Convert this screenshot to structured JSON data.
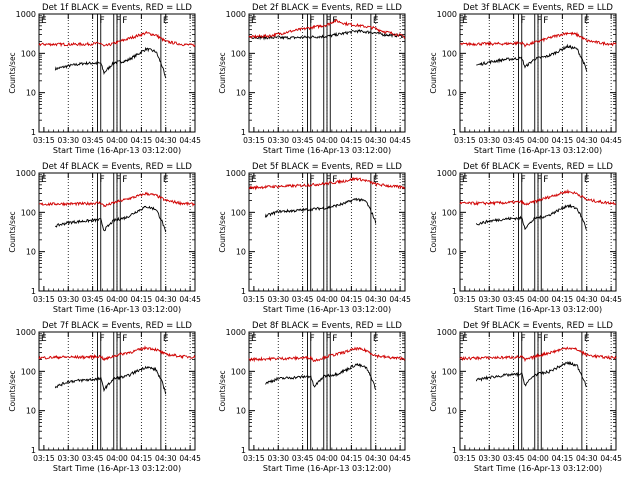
{
  "figure": {
    "ytick_labels": [
      "1",
      "10",
      "100",
      "1000"
    ],
    "xtick_labels": [
      "03:15",
      "03:30",
      "03:45",
      "04:00",
      "04:15",
      "04:30",
      "04:45"
    ],
    "ylabel": "Counts/sec",
    "xlabel": "Start Time (16-Apr-13 03:12:00)",
    "marker_label_e": "E",
    "marker_label_f": "F"
  },
  "chart_data": [
    {
      "type": "line",
      "title": "Det 1f BLACK = Events, RED = LLD",
      "yscale": "log",
      "ylim": [
        1,
        1000
      ],
      "xlim": [
        "03:12",
        "04:48"
      ],
      "series": [
        {
          "color": "#000000",
          "x": [
            "03:22",
            "03:30",
            "03:40",
            "03:50",
            "03:52",
            "03:58",
            "04:06",
            "04:12",
            "04:18",
            "04:24",
            "04:28",
            "04:30"
          ],
          "y": [
            40,
            48,
            56,
            56,
            32,
            58,
            65,
            90,
            130,
            110,
            45,
            22
          ]
        },
        {
          "color": "#d00000",
          "x": [
            "03:12",
            "03:25",
            "03:40",
            "03:50",
            "03:52",
            "04:00",
            "04:10",
            "04:18",
            "04:24",
            "04:30",
            "04:40",
            "04:48"
          ],
          "y": [
            170,
            170,
            170,
            180,
            150,
            190,
            260,
            330,
            290,
            200,
            170,
            160
          ]
        }
      ]
    },
    {
      "type": "line",
      "title": "Det 2f BLACK = Events, RED = LLD",
      "yscale": "log",
      "ylim": [
        1,
        1000
      ],
      "xlim": [
        "03:12",
        "04:48"
      ],
      "series": [
        {
          "color": "#000000",
          "x": [
            "03:12",
            "03:25",
            "03:40",
            "03:50",
            "04:00",
            "04:10",
            "04:18",
            "04:28",
            "04:35",
            "04:45",
            "04:48"
          ],
          "y": [
            260,
            250,
            250,
            260,
            270,
            320,
            370,
            340,
            300,
            280,
            260
          ]
        },
        {
          "color": "#d00000",
          "x": [
            "03:12",
            "03:25",
            "03:40",
            "03:50",
            "04:00",
            "04:05",
            "04:12",
            "04:18",
            "04:28",
            "04:35",
            "04:45",
            "04:48"
          ],
          "y": [
            260,
            280,
            380,
            450,
            530,
            680,
            560,
            520,
            450,
            360,
            290,
            260
          ]
        }
      ]
    },
    {
      "type": "line",
      "title": "Det 3f BLACK = Events, RED = LLD",
      "yscale": "log",
      "ylim": [
        1,
        1000
      ],
      "xlim": [
        "03:12",
        "04:48"
      ],
      "series": [
        {
          "color": "#000000",
          "x": [
            "03:22",
            "03:30",
            "03:40",
            "03:50",
            "03:52",
            "03:58",
            "04:06",
            "04:12",
            "04:18",
            "04:24",
            "04:28",
            "04:30"
          ],
          "y": [
            50,
            60,
            70,
            75,
            45,
            72,
            85,
            110,
            150,
            130,
            60,
            35
          ]
        },
        {
          "color": "#d00000",
          "x": [
            "03:12",
            "03:25",
            "03:40",
            "03:50",
            "03:52",
            "04:00",
            "04:10",
            "04:18",
            "04:24",
            "04:30",
            "04:40",
            "04:48"
          ],
          "y": [
            170,
            175,
            175,
            185,
            160,
            200,
            270,
            330,
            300,
            210,
            180,
            170
          ]
        }
      ]
    },
    {
      "type": "line",
      "title": "Det 4f BLACK = Events, RED = LLD",
      "yscale": "log",
      "ylim": [
        1,
        1000
      ],
      "xlim": [
        "03:12",
        "04:48"
      ],
      "series": [
        {
          "color": "#000000",
          "x": [
            "03:22",
            "03:30",
            "03:40",
            "03:50",
            "03:52",
            "03:58",
            "04:06",
            "04:12",
            "04:18",
            "04:24",
            "04:28",
            "04:30"
          ],
          "y": [
            45,
            55,
            60,
            65,
            35,
            62,
            75,
            105,
            140,
            120,
            55,
            30
          ]
        },
        {
          "color": "#d00000",
          "x": [
            "03:12",
            "03:25",
            "03:40",
            "03:50",
            "03:52",
            "04:00",
            "04:10",
            "04:18",
            "04:24",
            "04:30",
            "04:40",
            "04:48"
          ],
          "y": [
            160,
            165,
            165,
            175,
            145,
            185,
            240,
            300,
            270,
            200,
            170,
            160
          ]
        }
      ]
    },
    {
      "type": "line",
      "title": "Det 5f BLACK = Events, RED = LLD",
      "yscale": "log",
      "ylim": [
        1,
        1000
      ],
      "xlim": [
        "03:12",
        "04:48"
      ],
      "series": [
        {
          "color": "#000000",
          "x": [
            "03:22",
            "03:30",
            "03:40",
            "03:50",
            "04:00",
            "04:10",
            "04:18",
            "04:24",
            "04:28",
            "04:30"
          ],
          "y": [
            80,
            105,
            110,
            120,
            130,
            165,
            220,
            190,
            90,
            55
          ]
        },
        {
          "color": "#d00000",
          "x": [
            "03:12",
            "03:25",
            "03:40",
            "03:50",
            "04:00",
            "04:10",
            "04:18",
            "04:24",
            "04:30",
            "04:40",
            "04:48"
          ],
          "y": [
            420,
            450,
            470,
            500,
            540,
            620,
            720,
            640,
            520,
            460,
            430
          ]
        }
      ]
    },
    {
      "type": "line",
      "title": "Det 6f BLACK = Events, RED = LLD",
      "yscale": "log",
      "ylim": [
        1,
        1000
      ],
      "xlim": [
        "03:12",
        "04:48"
      ],
      "series": [
        {
          "color": "#000000",
          "x": [
            "03:22",
            "03:30",
            "03:40",
            "03:50",
            "03:52",
            "03:58",
            "04:06",
            "04:12",
            "04:18",
            "04:24",
            "04:28",
            "04:30"
          ],
          "y": [
            50,
            60,
            68,
            72,
            40,
            70,
            82,
            110,
            150,
            125,
            60,
            35
          ]
        },
        {
          "color": "#d00000",
          "x": [
            "03:12",
            "03:25",
            "03:40",
            "03:50",
            "03:52",
            "04:00",
            "04:10",
            "04:18",
            "04:24",
            "04:30",
            "04:40",
            "04:48"
          ],
          "y": [
            170,
            170,
            175,
            185,
            155,
            200,
            270,
            340,
            300,
            210,
            180,
            170
          ]
        }
      ]
    },
    {
      "type": "line",
      "title": "Det 7f BLACK = Events, RED = LLD",
      "yscale": "log",
      "ylim": [
        1,
        1000
      ],
      "xlim": [
        "03:12",
        "04:48"
      ],
      "series": [
        {
          "color": "#000000",
          "x": [
            "03:22",
            "03:30",
            "03:40",
            "03:50",
            "03:52",
            "03:58",
            "04:06",
            "04:12",
            "04:18",
            "04:24",
            "04:28",
            "04:30"
          ],
          "y": [
            40,
            55,
            60,
            65,
            35,
            65,
            75,
            100,
            130,
            110,
            50,
            28
          ]
        },
        {
          "color": "#d00000",
          "x": [
            "03:12",
            "03:25",
            "03:40",
            "03:50",
            "03:52",
            "04:00",
            "04:10",
            "04:18",
            "04:24",
            "04:30",
            "04:40",
            "04:48"
          ],
          "y": [
            220,
            230,
            230,
            240,
            200,
            260,
            320,
            400,
            360,
            270,
            240,
            230
          ]
        }
      ]
    },
    {
      "type": "line",
      "title": "Det 8f BLACK = Events, RED = LLD",
      "yscale": "log",
      "ylim": [
        1,
        1000
      ],
      "xlim": [
        "03:12",
        "04:48"
      ],
      "series": [
        {
          "color": "#000000",
          "x": [
            "03:22",
            "03:30",
            "03:40",
            "03:50",
            "03:52",
            "03:58",
            "04:06",
            "04:12",
            "04:18",
            "04:24",
            "04:28",
            "04:30"
          ],
          "y": [
            50,
            65,
            70,
            75,
            40,
            75,
            85,
            110,
            150,
            125,
            60,
            35
          ]
        },
        {
          "color": "#d00000",
          "x": [
            "03:12",
            "03:25",
            "03:40",
            "03:50",
            "03:52",
            "04:00",
            "04:10",
            "04:18",
            "04:24",
            "04:30",
            "04:40",
            "04:48"
          ],
          "y": [
            200,
            210,
            215,
            225,
            185,
            240,
            300,
            380,
            340,
            250,
            220,
            210
          ]
        }
      ]
    },
    {
      "type": "line",
      "title": "Det 9f BLACK = Events, RED = LLD",
      "yscale": "log",
      "ylim": [
        1,
        1000
      ],
      "xlim": [
        "03:12",
        "04:48"
      ],
      "series": [
        {
          "color": "#000000",
          "x": [
            "03:22",
            "03:30",
            "03:40",
            "03:50",
            "03:52",
            "03:58",
            "04:06",
            "04:12",
            "04:18",
            "04:24",
            "04:28",
            "04:30"
          ],
          "y": [
            60,
            70,
            80,
            85,
            45,
            82,
            95,
            125,
            165,
            140,
            65,
            40
          ]
        },
        {
          "color": "#d00000",
          "x": [
            "03:12",
            "03:25",
            "03:40",
            "03:50",
            "03:52",
            "04:00",
            "04:10",
            "04:18",
            "04:24",
            "04:30",
            "04:40",
            "04:48"
          ],
          "y": [
            210,
            220,
            225,
            235,
            195,
            250,
            320,
            400,
            360,
            260,
            230,
            220
          ]
        }
      ]
    }
  ],
  "markers": {
    "dotted": [
      "03:30",
      "03:45",
      "04:00",
      "04:15",
      "04:30",
      "04:45"
    ],
    "solid": [
      "03:12",
      "03:48",
      "03:50",
      "03:58",
      "04:00",
      "04:02",
      "04:27"
    ],
    "labels": [
      {
        "time": "03:12",
        "text": "E"
      },
      {
        "time": "03:48",
        "text": "F"
      },
      {
        "time": "03:58",
        "text": "F"
      },
      {
        "time": "04:02",
        "text": "F"
      },
      {
        "time": "04:27",
        "text": "E"
      }
    ]
  }
}
